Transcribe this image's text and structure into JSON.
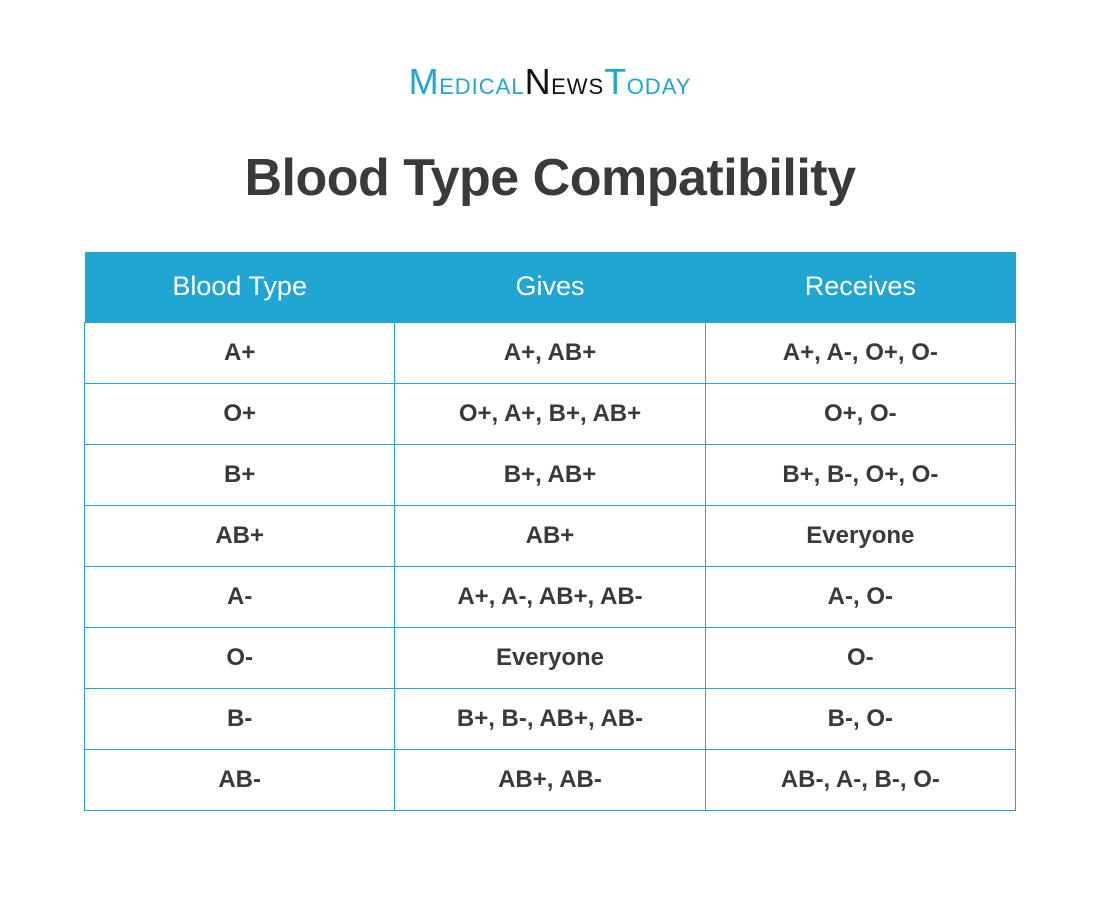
{
  "brand": {
    "word1_cap": "M",
    "word1_rest": "edical",
    "word2_cap": "N",
    "word2_rest": "ews",
    "word3_cap": "T",
    "word3_rest": "oday",
    "color_primary": "#21a6d4",
    "color_secondary": "#111111"
  },
  "title": "Blood Type Compatibility",
  "table": {
    "header_bg": "#21a6d4",
    "header_text_color": "#ffffff",
    "cell_border_color": "#21a6d4",
    "cell_text_color": "#3a3a3a",
    "columns": [
      "Blood Type",
      "Gives",
      "Receives"
    ],
    "rows": [
      [
        "A+",
        "A+, AB+",
        "A+, A-, O+, O-"
      ],
      [
        "O+",
        "O+, A+, B+, AB+",
        "O+, O-"
      ],
      [
        "B+",
        "B+, AB+",
        "B+, B-, O+, O-"
      ],
      [
        "AB+",
        "AB+",
        "Everyone"
      ],
      [
        "A-",
        "A+, A-, AB+, AB-",
        "A-, O-"
      ],
      [
        "O-",
        "Everyone",
        "O-"
      ],
      [
        "B-",
        "B+, B-, AB+, AB-",
        "B-, O-"
      ],
      [
        "AB-",
        "AB+, AB-",
        "AB-, A-, B-, O-"
      ]
    ]
  }
}
